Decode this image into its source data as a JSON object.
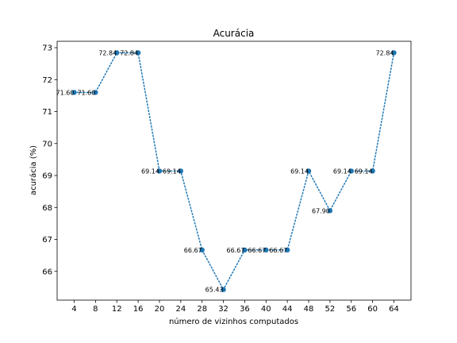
{
  "chart_data": {
    "type": "line",
    "title": "Acurácia",
    "xlabel": "número de vizinhos computados",
    "ylabel": "acurácia (%)",
    "x": [
      4,
      8,
      12,
      16,
      20,
      24,
      28,
      32,
      36,
      40,
      44,
      48,
      52,
      56,
      60,
      64
    ],
    "xticks": [
      4,
      8,
      12,
      16,
      20,
      24,
      28,
      32,
      36,
      40,
      44,
      48,
      52,
      56,
      60,
      64
    ],
    "yticks": [
      66,
      67,
      68,
      69,
      70,
      71,
      72,
      73
    ],
    "xlim": [
      0.8,
      67.2
    ],
    "ylim": [
      65.1,
      73.2
    ],
    "series": [
      {
        "values": [
          71.6,
          71.6,
          72.84,
          72.84,
          69.14,
          69.14,
          66.67,
          65.43,
          66.67,
          66.67,
          66.67,
          69.14,
          67.9,
          69.14,
          69.14,
          72.84
        ],
        "labels": [
          "71.60",
          "71.60",
          "72.84",
          "72.84",
          "69.14",
          "69.14",
          "66.67",
          "65.43",
          "66.67",
          "66.67",
          "66.67",
          "69.14",
          "67.90",
          "69.14",
          "69.14",
          "72.84"
        ],
        "color": "#1f77b4",
        "line_style": "dotted",
        "marker": "circle"
      }
    ],
    "grid": false,
    "legend": false
  }
}
